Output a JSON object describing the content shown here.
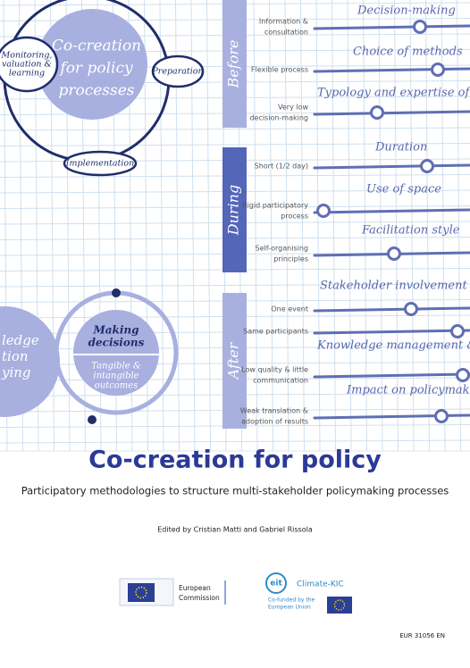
{
  "illustration": {
    "cycle": {
      "center": [
        "Co-creation",
        "for policy",
        "processes"
      ],
      "stages": [
        {
          "label": [
            "Monitoring,",
            "valuation &",
            "learning"
          ]
        },
        {
          "label": [
            "Preparation"
          ]
        },
        {
          "label": [
            "Implementation"
          ]
        }
      ]
    },
    "phases": [
      {
        "label": "Before",
        "rows": [
          {
            "header": "Decision-making",
            "label": [
              "Information &",
              "consultation"
            ]
          },
          {
            "header": "Choice of methods",
            "label": [
              "Flexible process"
            ]
          },
          {
            "header": "Typology and expertise of participants",
            "label": [
              "Very low",
              "decision-making"
            ]
          }
        ]
      },
      {
        "label": "During",
        "rows": [
          {
            "header": "Duration",
            "label": [
              "Short (1/2 day)"
            ]
          },
          {
            "header": "Use of space",
            "label": [
              "Rigid participatory",
              "process"
            ]
          },
          {
            "header": "Facilitation style",
            "label": [
              "Self-organising",
              "principles"
            ]
          }
        ]
      },
      {
        "label": "After",
        "rows": [
          {
            "header": "Stakeholder involvement over time",
            "label": [
              "One event"
            ]
          },
          {
            "header": "",
            "label": [
              "Same participants"
            ]
          },
          {
            "header": "Knowledge management & communication",
            "label": [
              "Low quality & little",
              "communication"
            ]
          },
          {
            "header": "Impact on policymaking",
            "label": [
              "Weak translation &",
              "adoption of results"
            ]
          }
        ]
      }
    ],
    "loop": {
      "left": [
        "ledge",
        "tion",
        "ying"
      ],
      "right_top": [
        "Making",
        "decisions"
      ],
      "right_bottom": [
        "Tangible &",
        "intangible",
        "outcomes"
      ]
    }
  },
  "title": "Co-creation for policy",
  "subtitle": "Participatory methodologies to structure multi-stakeholder policymaking processes",
  "editors": "Edited by Cristian Matti and Gabriel Rissola",
  "logos": {
    "ec": [
      "European",
      "Commission"
    ],
    "eit": "eit",
    "climate_kic": "Climate-KIC",
    "cofunded": [
      "Co-funded by the",
      "European Union"
    ]
  },
  "report_number": "EUR 31056 EN"
}
